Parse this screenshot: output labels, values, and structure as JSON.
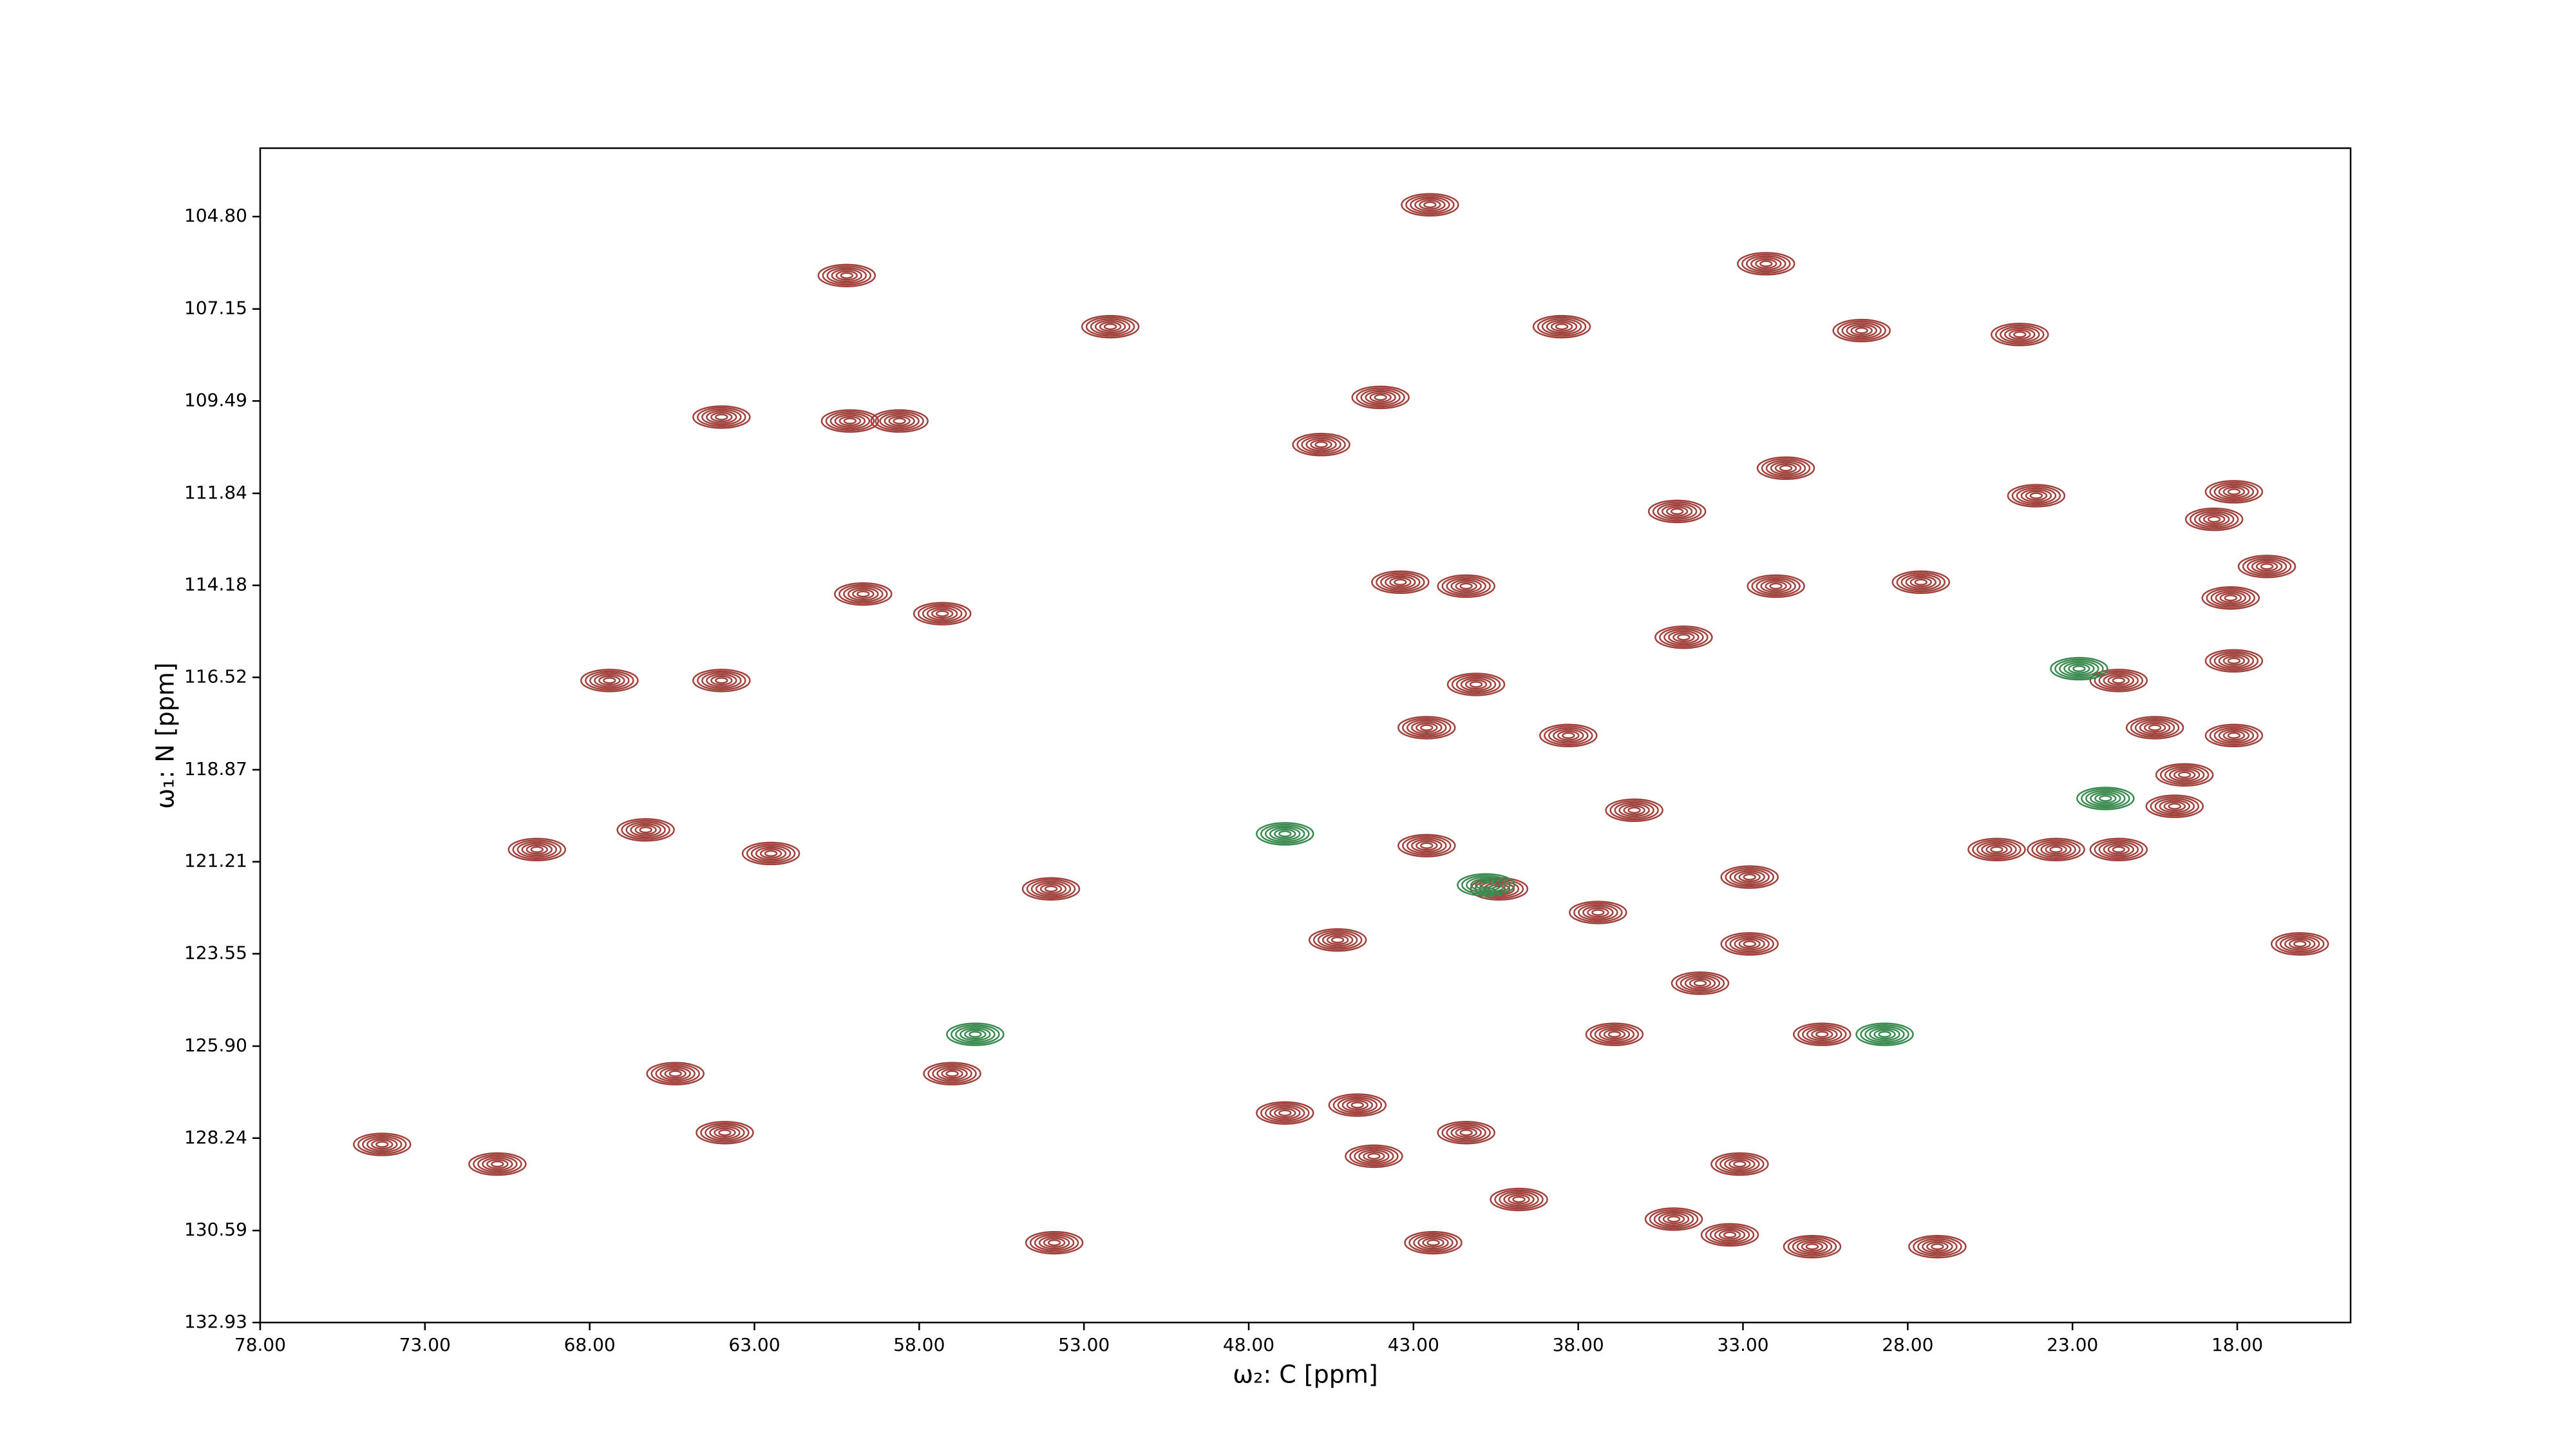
{
  "chart_data": {
    "type": "contour",
    "xlabel": "ω₂: C [ppm]",
    "ylabel": "ω₁: N [ppm]",
    "xlim": [
      78,
      14.56
    ],
    "ylim": [
      132.93,
      103.06
    ],
    "xticks": [
      {
        "value": 78,
        "label": "78.00"
      },
      {
        "value": 73,
        "label": "73.00"
      },
      {
        "value": 68,
        "label": "68.00"
      },
      {
        "value": 63,
        "label": "63.00"
      },
      {
        "value": 58,
        "label": "58.00"
      },
      {
        "value": 53,
        "label": "53.00"
      },
      {
        "value": 48,
        "label": "48.00"
      },
      {
        "value": 43,
        "label": "43.00"
      },
      {
        "value": 38,
        "label": "38.00"
      },
      {
        "value": 33,
        "label": "33.00"
      },
      {
        "value": 28,
        "label": "28.00"
      },
      {
        "value": 23,
        "label": "23.00"
      },
      {
        "value": 18,
        "label": "18.00"
      }
    ],
    "yticks": [
      {
        "value": 104.8,
        "label": "104.80"
      },
      107.15,
      109.49,
      111.84,
      114.18,
      116.52,
      118.87,
      121.21,
      123.55,
      {
        "value": 125.9,
        "label": "125.90"
      },
      128.24,
      130.59,
      132.93
    ],
    "series": [
      {
        "color": "#a0413c",
        "x": [
          64.0,
          60.1,
          58.6,
          42.5,
          52.2,
          38.5,
          44.0,
          45.8,
          32.3,
          60.2,
          29.4,
          24.6,
          18.1,
          18.7,
          18.2,
          17.1,
          59.7,
          43.4,
          41.4,
          32.0,
          27.6,
          24.1,
          31.7,
          35.0,
          57.3,
          67.4,
          64.0,
          21.6,
          18.1,
          20.5,
          18.1,
          41.1,
          42.6,
          38.3,
          34.8,
          69.6,
          66.3,
          62.5,
          54.0,
          45.3,
          40.4,
          42.6,
          30.6,
          46.9,
          44.7,
          41.4,
          16.1,
          25.3,
          23.5,
          21.6,
          19.9,
          19.6,
          36.3,
          37.4,
          32.8,
          32.8,
          34.3,
          36.9,
          65.4,
          74.3,
          70.8,
          63.9,
          44.2,
          39.8,
          33.1,
          35.1,
          33.4,
          30.9,
          27.1,
          42.4,
          53.9,
          57.0
        ],
        "values": [
          109.9,
          110.0,
          110.0,
          104.5,
          107.6,
          107.6,
          109.4,
          110.6,
          106.0,
          106.3,
          107.7,
          107.8,
          111.8,
          112.5,
          114.5,
          113.7,
          114.4,
          114.1,
          114.2,
          114.2,
          114.1,
          111.9,
          111.2,
          112.3,
          114.9,
          116.6,
          116.6,
          116.6,
          116.1,
          117.8,
          118.0,
          116.7,
          117.8,
          118.0,
          115.5,
          120.9,
          120.4,
          121.0,
          121.9,
          123.2,
          121.9,
          120.8,
          125.6,
          127.6,
          127.4,
          128.1,
          123.3,
          120.9,
          120.9,
          120.9,
          119.8,
          119.0,
          119.9,
          122.5,
          121.6,
          123.3,
          124.3,
          125.6,
          126.6,
          128.4,
          128.9,
          128.1,
          128.7,
          129.8,
          128.9,
          130.3,
          130.7,
          131.0,
          131.0,
          130.9,
          130.9,
          126.6
        ]
      },
      {
        "color": "#3a8a50",
        "x": [
          28.7,
          56.3,
          46.9,
          22.8,
          22.0,
          40.8
        ],
        "values": [
          125.6,
          125.6,
          120.5,
          116.3,
          119.6,
          121.8
        ]
      }
    ]
  }
}
